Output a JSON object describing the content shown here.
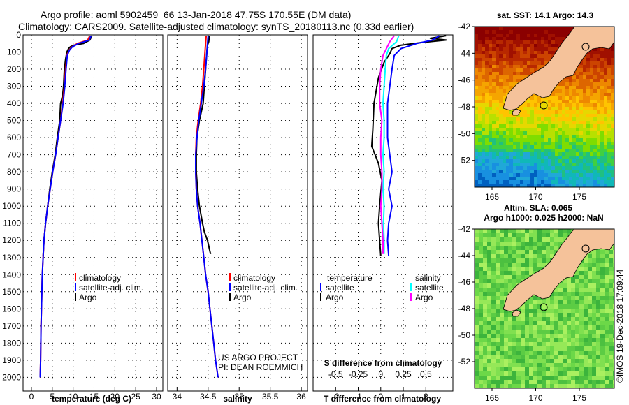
{
  "header": {
    "line1": "Argo profile: aoml 5902459_66 13-Jan-2018 47.75S 170.55E (DM data)",
    "line2": "Climatology: CARS2009. Satellite-adjusted climatology: synTS_20180113.nc (0.33d earlier)"
  },
  "credit": {
    "line1": "US ARGO PROJECT",
    "line2": "PI: DEAN ROEMMICH",
    "imos": "©IMOS 19-Dec-2018 17:09:44"
  },
  "colors": {
    "argo": "#000000",
    "satellite": "#0000ff",
    "climatology": "#ff0000",
    "salinity_satellite": "#00ffff",
    "salinity_argo": "#ff00ff"
  },
  "chart_data": [
    {
      "id": "temperature",
      "type": "line",
      "xlabel": "temperature (deg C)",
      "xlim": [
        -2,
        31.5
      ],
      "ylim": [
        0,
        2080
      ],
      "xticks": [
        0,
        5,
        10,
        15,
        20,
        25,
        30
      ],
      "xtick_labels": [
        "0",
        "5",
        "10",
        "15",
        "20",
        "25",
        "30"
      ],
      "ylabel_ticks": [
        "0",
        "100",
        "200",
        "300",
        "400",
        "500",
        "600",
        "700",
        "800",
        "900",
        "1000",
        "1100",
        "1200",
        "1300",
        "1400",
        "1500",
        "1600",
        "1700",
        "1800",
        "1900",
        "2000"
      ],
      "legend": [
        "climatology",
        "satellite-adj. clim.",
        "Argo"
      ],
      "series": [
        {
          "name": "Argo",
          "color": "#000000",
          "points": [
            [
              14.5,
              5
            ],
            [
              14.3,
              15
            ],
            [
              14.0,
              30
            ],
            [
              12.5,
              50
            ],
            [
              10.2,
              60
            ],
            [
              9.3,
              70
            ],
            [
              8.9,
              80
            ],
            [
              8.7,
              90
            ],
            [
              8.5,
              100
            ],
            [
              8.2,
              140
            ],
            [
              7.9,
              200
            ],
            [
              7.7,
              300
            ],
            [
              7.5,
              350
            ],
            [
              7.0,
              400
            ],
            [
              6.8,
              500
            ],
            [
              6.2,
              600
            ],
            [
              5.7,
              700
            ],
            [
              5.0,
              800
            ],
            [
              4.4,
              900
            ],
            [
              3.9,
              1000
            ],
            [
              3.4,
              1100
            ],
            [
              3.0,
              1200
            ],
            [
              2.8,
              1290
            ]
          ]
        },
        {
          "name": "climatology",
          "color": "#ff0000",
          "points": [
            [
              14.0,
              5
            ],
            [
              13.5,
              30
            ],
            [
              11.0,
              50
            ],
            [
              9.7,
              70
            ],
            [
              9.0,
              90
            ],
            [
              8.5,
              120
            ],
            [
              8.2,
              200
            ],
            [
              7.9,
              300
            ],
            [
              7.5,
              400
            ],
            [
              7.0,
              500
            ],
            [
              6.4,
              600
            ],
            [
              5.8,
              700
            ],
            [
              5.1,
              800
            ],
            [
              4.5,
              900
            ],
            [
              3.9,
              1000
            ],
            [
              3.4,
              1100
            ],
            [
              3.0,
              1200
            ],
            [
              2.8,
              1300
            ],
            [
              2.6,
              1400
            ],
            [
              2.5,
              1500
            ],
            [
              2.3,
              1700
            ],
            [
              2.2,
              1900
            ],
            [
              2.1,
              2000
            ]
          ]
        },
        {
          "name": "satellite-adj. clim.",
          "color": "#0000ff",
          "points": [
            [
              14.3,
              5
            ],
            [
              13.9,
              30
            ],
            [
              11.3,
              50
            ],
            [
              9.8,
              70
            ],
            [
              9.1,
              90
            ],
            [
              8.6,
              120
            ],
            [
              8.3,
              200
            ],
            [
              8.0,
              300
            ],
            [
              7.6,
              400
            ],
            [
              7.0,
              500
            ],
            [
              6.4,
              600
            ],
            [
              5.8,
              700
            ],
            [
              5.1,
              800
            ],
            [
              4.5,
              900
            ],
            [
              3.9,
              1000
            ],
            [
              3.4,
              1100
            ],
            [
              3.0,
              1200
            ],
            [
              2.8,
              1300
            ],
            [
              2.6,
              1400
            ],
            [
              2.5,
              1500
            ],
            [
              2.3,
              1700
            ],
            [
              2.2,
              1900
            ],
            [
              2.1,
              2000
            ]
          ]
        }
      ]
    },
    {
      "id": "salinity",
      "type": "line",
      "xlabel": "salinity",
      "xlim": [
        33.85,
        36.1
      ],
      "ylim": [
        0,
        2080
      ],
      "xticks": [
        34,
        34.5,
        35,
        35.5,
        36
      ],
      "xtick_labels": [
        "34",
        "34.5",
        "35",
        "35.5",
        "36"
      ],
      "legend": [
        "climatology",
        "satellite-adj. clim.",
        "Argo"
      ],
      "series": [
        {
          "name": "Argo",
          "color": "#000000",
          "points": [
            [
              34.52,
              5
            ],
            [
              34.51,
              40
            ],
            [
              34.49,
              60
            ],
            [
              34.48,
              100
            ],
            [
              34.46,
              200
            ],
            [
              34.44,
              300
            ],
            [
              34.42,
              400
            ],
            [
              34.36,
              500
            ],
            [
              34.32,
              600
            ],
            [
              34.31,
              700
            ],
            [
              34.31,
              800
            ],
            [
              34.33,
              900
            ],
            [
              34.36,
              1000
            ],
            [
              34.41,
              1100
            ],
            [
              34.44,
              1150
            ],
            [
              34.49,
              1200
            ],
            [
              34.52,
              1250
            ],
            [
              34.54,
              1280
            ]
          ]
        },
        {
          "name": "climatology",
          "color": "#ff0000",
          "points": [
            [
              34.47,
              5
            ],
            [
              34.45,
              100
            ],
            [
              34.43,
              200
            ],
            [
              34.41,
              300
            ],
            [
              34.38,
              400
            ],
            [
              34.34,
              500
            ],
            [
              34.31,
              600
            ],
            [
              34.3,
              700
            ],
            [
              34.3,
              800
            ],
            [
              34.31,
              900
            ],
            [
              34.33,
              1000
            ],
            [
              34.37,
              1100
            ],
            [
              34.4,
              1200
            ],
            [
              34.43,
              1300
            ],
            [
              34.46,
              1400
            ],
            [
              34.5,
              1500
            ],
            [
              34.53,
              1600
            ],
            [
              34.56,
              1700
            ],
            [
              34.59,
              1800
            ],
            [
              34.62,
              1900
            ],
            [
              34.66,
              2000
            ]
          ]
        },
        {
          "name": "satellite-adj. clim.",
          "color": "#0000ff",
          "points": [
            [
              34.5,
              5
            ],
            [
              34.48,
              100
            ],
            [
              34.46,
              200
            ],
            [
              34.43,
              300
            ],
            [
              34.39,
              400
            ],
            [
              34.35,
              500
            ],
            [
              34.32,
              600
            ],
            [
              34.3,
              700
            ],
            [
              34.3,
              800
            ],
            [
              34.31,
              900
            ],
            [
              34.33,
              1000
            ],
            [
              34.37,
              1100
            ],
            [
              34.4,
              1200
            ],
            [
              34.43,
              1300
            ],
            [
              34.46,
              1400
            ],
            [
              34.5,
              1500
            ],
            [
              34.53,
              1600
            ],
            [
              34.56,
              1700
            ],
            [
              34.59,
              1800
            ],
            [
              34.62,
              1900
            ],
            [
              34.66,
              2000
            ]
          ]
        }
      ]
    },
    {
      "id": "difference",
      "type": "line",
      "xlabel": "T difference from climatology",
      "s_axis_label": "S difference from climatology",
      "xlim": [
        -3,
        3.2
      ],
      "ylim": [
        0,
        2080
      ],
      "xticks": [
        -2,
        -1,
        0,
        1,
        2
      ],
      "xtick_labels": [
        "-2",
        "-1",
        "0",
        "1",
        "2"
      ],
      "s_xticks": [
        -0.5,
        -0.25,
        0,
        0.25,
        0.5
      ],
      "s_xtick_labels": [
        "-0.5",
        "-0.25",
        "0",
        "0.25",
        "0.5"
      ],
      "legend_titles": [
        "temperature",
        "salinity"
      ],
      "legend": [
        "satellite",
        "Argo",
        "satellite",
        "Argo"
      ],
      "series": [
        {
          "name": "temperature Argo",
          "color": "#000000",
          "points": [
            [
              2.9,
              5
            ],
            [
              2.2,
              20
            ],
            [
              2.9,
              30
            ],
            [
              1.8,
              45
            ],
            [
              0.9,
              60
            ],
            [
              0.5,
              80
            ],
            [
              0.4,
              110
            ],
            [
              0.15,
              160
            ],
            [
              -0.1,
              250
            ],
            [
              -0.3,
              400
            ],
            [
              -0.35,
              550
            ],
            [
              -0.4,
              650
            ],
            [
              -0.1,
              750
            ],
            [
              0.05,
              850
            ],
            [
              -0.05,
              1000
            ],
            [
              -0.1,
              1100
            ],
            [
              -0.05,
              1200
            ],
            [
              0.0,
              1290
            ]
          ]
        },
        {
          "name": "temperature satellite",
          "color": "#0000ff",
          "points": [
            [
              2.6,
              5
            ],
            [
              2.3,
              30
            ],
            [
              1.6,
              50
            ],
            [
              0.9,
              80
            ],
            [
              0.6,
              120
            ],
            [
              0.5,
              200
            ],
            [
              0.4,
              300
            ],
            [
              0.3,
              400
            ],
            [
              0.3,
              500
            ],
            [
              0.3,
              600
            ],
            [
              0.4,
              700
            ],
            [
              0.5,
              800
            ],
            [
              0.35,
              900
            ],
            [
              0.5,
              1000
            ],
            [
              0.35,
              1100
            ],
            [
              0.3,
              1200
            ],
            [
              0.35,
              1290
            ]
          ]
        },
        {
          "name": "salinity satellite",
          "color": "#00ffff",
          "points": [
            [
              0.8,
              5
            ],
            [
              0.7,
              40
            ],
            [
              0.35,
              80
            ],
            [
              0.25,
              120
            ],
            [
              0.2,
              200
            ],
            [
              0.15,
              300
            ],
            [
              0.1,
              400
            ],
            [
              0.15,
              500
            ],
            [
              0.15,
              600
            ],
            [
              0.1,
              700
            ],
            [
              0.15,
              800
            ],
            [
              0.1,
              900
            ],
            [
              0.15,
              1000
            ],
            [
              0.12,
              1100
            ],
            [
              0.15,
              1200
            ],
            [
              0.15,
              1280
            ]
          ]
        },
        {
          "name": "salinity Argo",
          "color": "#ff00ff",
          "points": [
            [
              0.6,
              5
            ],
            [
              0.4,
              40
            ],
            [
              0.1,
              120
            ],
            [
              0.0,
              200
            ],
            [
              -0.05,
              300
            ],
            [
              -0.05,
              400
            ],
            [
              0.05,
              500
            ],
            [
              0.0,
              600
            ],
            [
              0.0,
              700
            ],
            [
              0.05,
              800
            ],
            [
              0.05,
              900
            ],
            [
              0.0,
              1000
            ],
            [
              0.05,
              1100
            ],
            [
              0.1,
              1200
            ],
            [
              0.1,
              1280
            ]
          ]
        }
      ]
    },
    {
      "id": "sst_map",
      "type": "heatmap",
      "title": "sat. SST: 14.1 Argo: 14.3",
      "xlim": [
        163,
        179
      ],
      "ylim": [
        -54,
        -42
      ],
      "xticks": [
        165,
        170,
        175
      ],
      "yticks": [
        -42,
        -44,
        -46,
        -48,
        -50,
        -52
      ],
      "xtick_labels": [
        "165",
        "170",
        "175"
      ],
      "ytick_labels": [
        "-42",
        "-44",
        "-46",
        "-48",
        "-50",
        "-52"
      ],
      "argo_position": [
        170.55,
        -47.75
      ],
      "marker2": [
        175.3,
        -43.3
      ]
    },
    {
      "id": "sla_map",
      "type": "heatmap",
      "title_line1": "Altim. SLA: 0.065",
      "title_line2": "Argo h1000: 0.025 h2000: NaN",
      "xlim": [
        163,
        179
      ],
      "ylim": [
        -54,
        -42
      ],
      "xticks": [
        165,
        170,
        175
      ],
      "yticks": [
        -42,
        -44,
        -46,
        -48,
        -50,
        -52
      ],
      "xtick_labels": [
        "165",
        "170",
        "175"
      ],
      "ytick_labels": [
        "-42",
        "-44",
        "-46",
        "-48",
        "-50",
        "-52"
      ],
      "argo_position": [
        170.55,
        -47.75
      ],
      "marker2": [
        175.3,
        -43.3
      ]
    }
  ]
}
